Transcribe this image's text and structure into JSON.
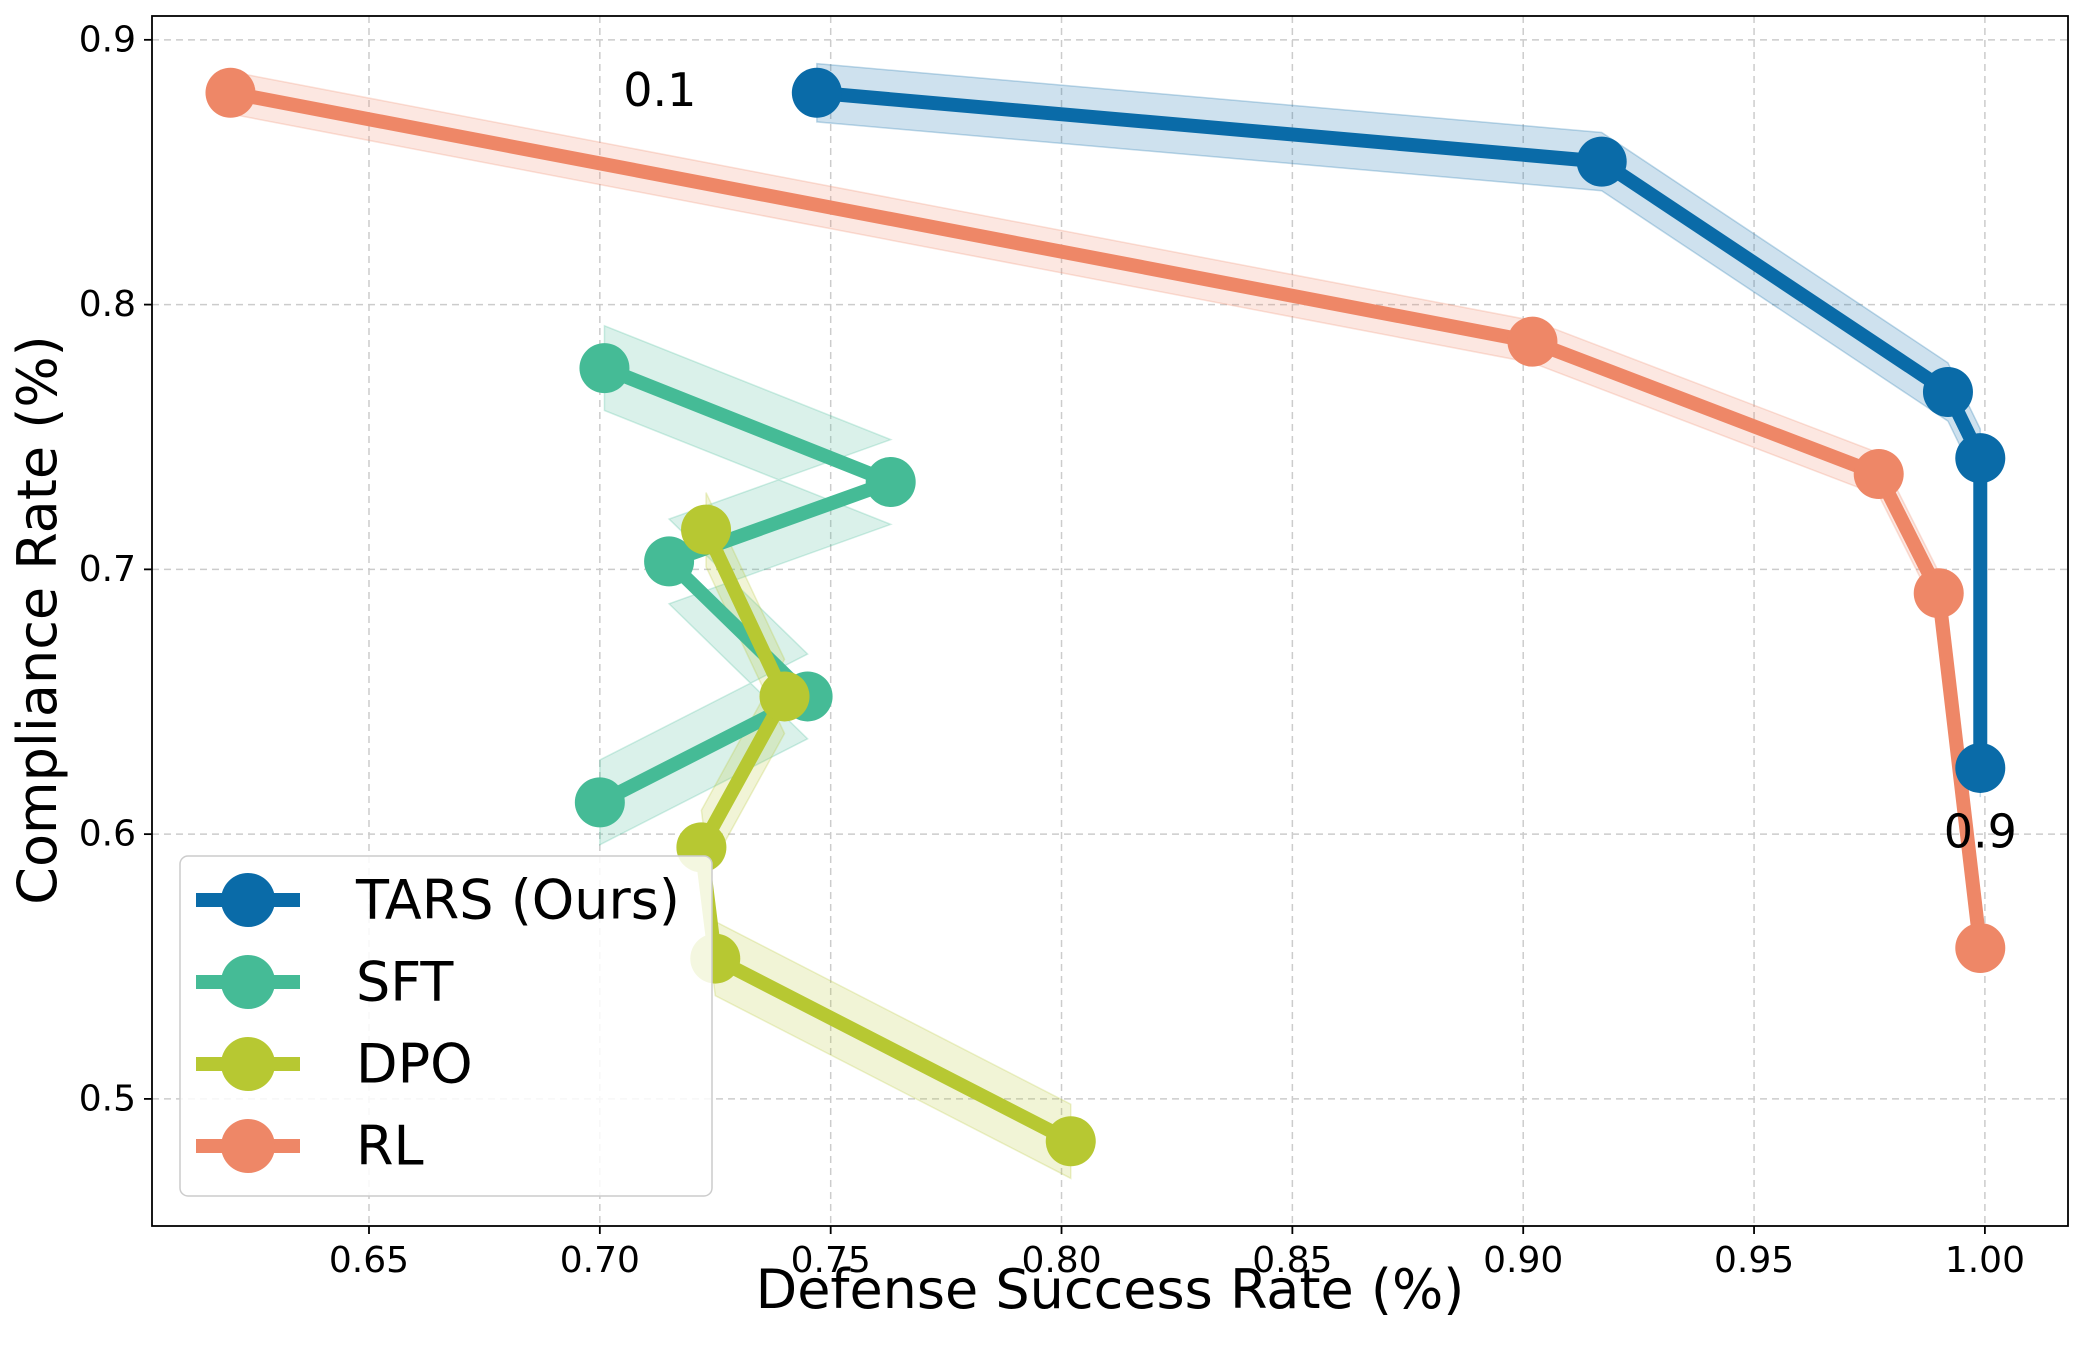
{
  "chart_data": {
    "type": "line",
    "title": "",
    "xlabel": "Defense Success Rate (%)",
    "ylabel": "Compliance Rate (%)",
    "xlim": [
      0.603,
      1.018
    ],
    "ylim": [
      0.452,
      0.909
    ],
    "xticks": [
      0.65,
      0.7,
      0.75,
      0.8,
      0.85,
      0.9,
      0.95,
      1.0
    ],
    "xtick_labels": [
      "0.65",
      "0.70",
      "0.75",
      "0.80",
      "0.85",
      "0.90",
      "0.95",
      "1.00"
    ],
    "yticks": [
      0.5,
      0.6,
      0.7,
      0.8,
      0.9
    ],
    "ytick_labels": [
      "0.5",
      "0.6",
      "0.7",
      "0.8",
      "0.9"
    ],
    "grid": true,
    "legend_position": "lower-left",
    "series": [
      {
        "name": "TARS (Ours)",
        "color": "#0a6ba8",
        "x": [
          0.747,
          0.917,
          0.992,
          0.999,
          0.999
        ],
        "y": [
          0.88,
          0.854,
          0.767,
          0.742,
          0.625
        ],
        "band": 0.011
      },
      {
        "name": "SFT",
        "color": "#45bb96",
        "x": [
          0.701,
          0.763,
          0.715,
          0.745,
          0.7
        ],
        "y": [
          0.776,
          0.733,
          0.703,
          0.652,
          0.612
        ],
        "band": 0.016
      },
      {
        "name": "DPO",
        "color": "#b7c832",
        "x": [
          0.723,
          0.74,
          0.722,
          0.725,
          0.802
        ],
        "y": [
          0.715,
          0.652,
          0.595,
          0.553,
          0.484
        ],
        "band": 0.014
      },
      {
        "name": "RL",
        "color": "#ee8767",
        "x": [
          0.62,
          0.902,
          0.977,
          0.99,
          0.999
        ],
        "y": [
          0.88,
          0.786,
          0.736,
          0.691,
          0.557
        ],
        "band": 0.008
      }
    ],
    "annotations": [
      {
        "text": "0.1",
        "x": 0.713,
        "y": 0.881
      },
      {
        "text": "0.9",
        "x": 0.999,
        "y": 0.601
      }
    ]
  }
}
